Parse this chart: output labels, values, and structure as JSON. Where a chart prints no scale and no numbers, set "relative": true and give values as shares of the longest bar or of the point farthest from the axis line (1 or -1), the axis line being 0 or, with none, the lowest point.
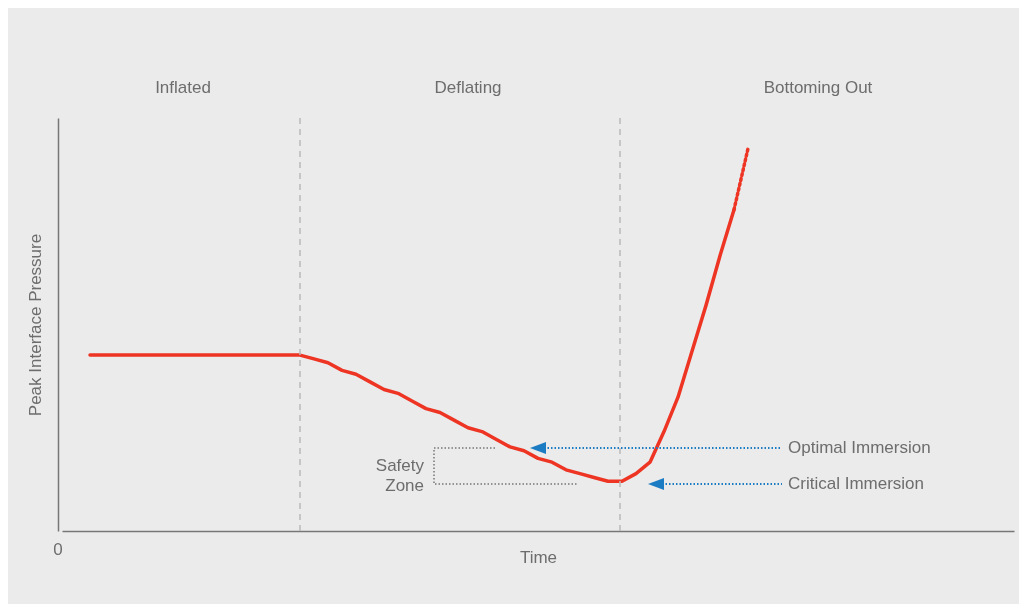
{
  "chart_data": {
    "type": "line",
    "relative": true,
    "xlabel": "Time",
    "ylabel": "Peak Interface Pressure",
    "grid": false,
    "categories": [
      null,
      null,
      null,
      null,
      null,
      null,
      null,
      null,
      null,
      null,
      null,
      null,
      null,
      null,
      null,
      null,
      null,
      null,
      null,
      null,
      null,
      null,
      null,
      null,
      null,
      null,
      null,
      null,
      null,
      null,
      null,
      null,
      null,
      null,
      null,
      null,
      null,
      null,
      null,
      null,
      null,
      null,
      null,
      null,
      null,
      null,
      null,
      null,
      null,
      null,
      null,
      null,
      null,
      null,
      null,
      null,
      null,
      null,
      null,
      null,
      null,
      null,
      null,
      null,
      null,
      null,
      null,
      null,
      null
    ],
    "series": [
      {
        "color": "#ee3524",
        "line_style": "solid",
        "values": [
          null,
          null,
          0.46,
          0.46,
          0.46,
          0.46,
          0.46,
          0.46,
          0.46,
          0.46,
          0.46,
          0.46,
          0.46,
          0.46,
          0.46,
          0.46,
          0.46,
          0.46,
          0.45,
          0.44,
          0.42,
          0.41,
          0.39,
          0.37,
          0.36,
          0.34,
          0.32,
          0.31,
          0.29,
          0.27,
          0.26,
          0.24,
          0.22,
          0.21,
          0.19,
          0.18,
          0.16,
          0.15,
          0.14,
          0.13,
          0.13,
          0.15,
          0.18,
          0.26,
          0.35,
          0.47,
          0.59,
          0.72,
          0.84,
          null,
          null,
          null,
          null,
          null,
          null,
          null,
          null,
          null,
          null,
          null,
          null,
          null,
          null,
          null,
          null,
          null,
          null,
          null,
          null
        ]
      },
      {
        "color": "#ee3524",
        "line_style": "dotted",
        "values": [
          null,
          null,
          null,
          null,
          null,
          null,
          null,
          null,
          null,
          null,
          null,
          null,
          null,
          null,
          null,
          null,
          null,
          null,
          null,
          null,
          null,
          null,
          null,
          null,
          null,
          null,
          null,
          null,
          null,
          null,
          null,
          null,
          null,
          null,
          null,
          null,
          null,
          null,
          null,
          null,
          null,
          null,
          null,
          null,
          null,
          null,
          null,
          null,
          0.84,
          1,
          null,
          null,
          null,
          null,
          null,
          null,
          null,
          null,
          null,
          null,
          null,
          null,
          null,
          null,
          null,
          null,
          null,
          null,
          null
        ]
      }
    ],
    "annotations": [
      "Inflated",
      "Deflating",
      "Bottoming Out",
      "0",
      "Safety Zone",
      "Optimal Immersion",
      "Critical Immersion"
    ]
  }
}
